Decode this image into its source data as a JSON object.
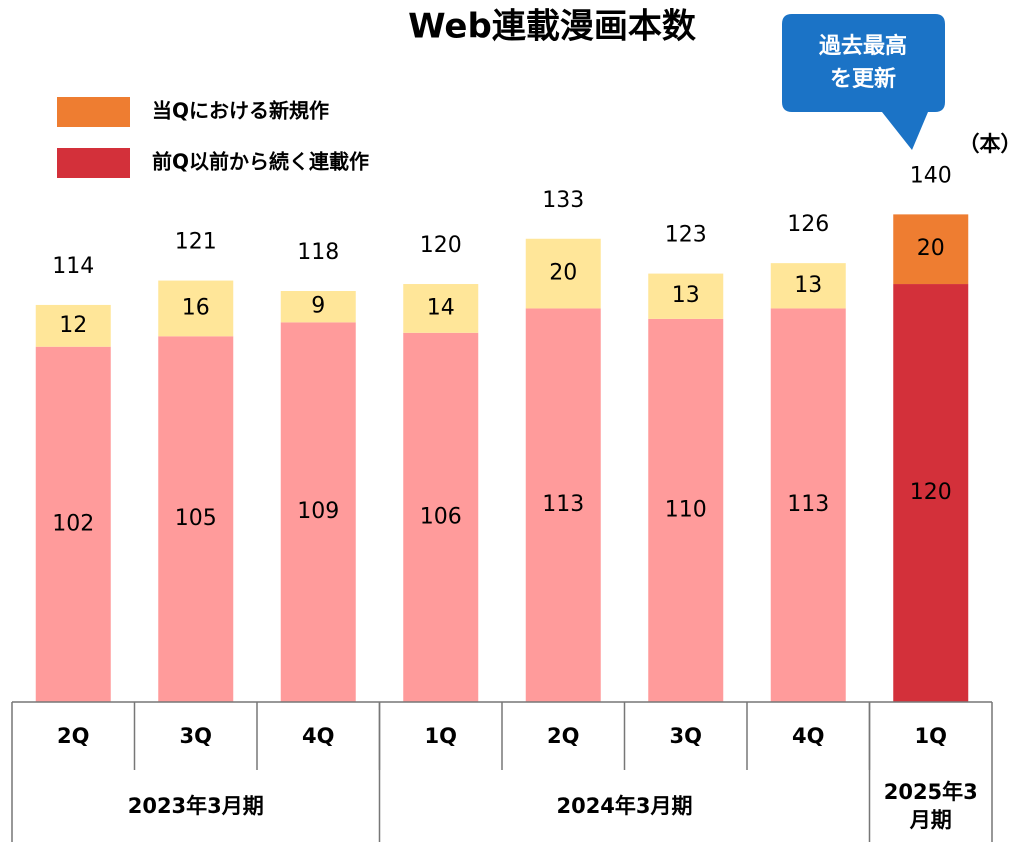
{
  "chart_data": {
    "type": "stacked_bar",
    "title": "Web連載漫画本数",
    "unit_label": "（本）",
    "callout": [
      "過去最高",
      "を更新"
    ],
    "categories": [
      "2Q",
      "3Q",
      "4Q",
      "1Q",
      "2Q",
      "3Q",
      "4Q",
      "1Q"
    ],
    "groups": [
      {
        "label": "2023年3月期",
        "count": 3
      },
      {
        "label": "2024年3月期",
        "count": 4
      },
      {
        "label": "2025年3月期",
        "count": 1
      }
    ],
    "series": [
      {
        "name": "前Q以前から続く連載作",
        "color": "#d3303a",
        "point_colors": [
          "#ff9b9b",
          "#ff9b9b",
          "#ff9b9b",
          "#ff9b9b",
          "#ff9b9b",
          "#ff9b9b",
          "#ff9b9b",
          "#d3303a"
        ],
        "values": [
          102,
          105,
          109,
          106,
          113,
          110,
          113,
          120
        ]
      },
      {
        "name": "当Qにおける新規作",
        "color": "#ee7d31",
        "point_colors": [
          "#ffe699",
          "#ffe699",
          "#ffe699",
          "#ffe699",
          "#ffe699",
          "#ffe699",
          "#ffe699",
          "#ee7d31"
        ],
        "values": [
          12,
          16,
          9,
          14,
          20,
          13,
          13,
          20
        ]
      }
    ],
    "totals": [
      114,
      121,
      118,
      120,
      133,
      123,
      126,
      140
    ],
    "legend_order": [
      1,
      0
    ]
  }
}
